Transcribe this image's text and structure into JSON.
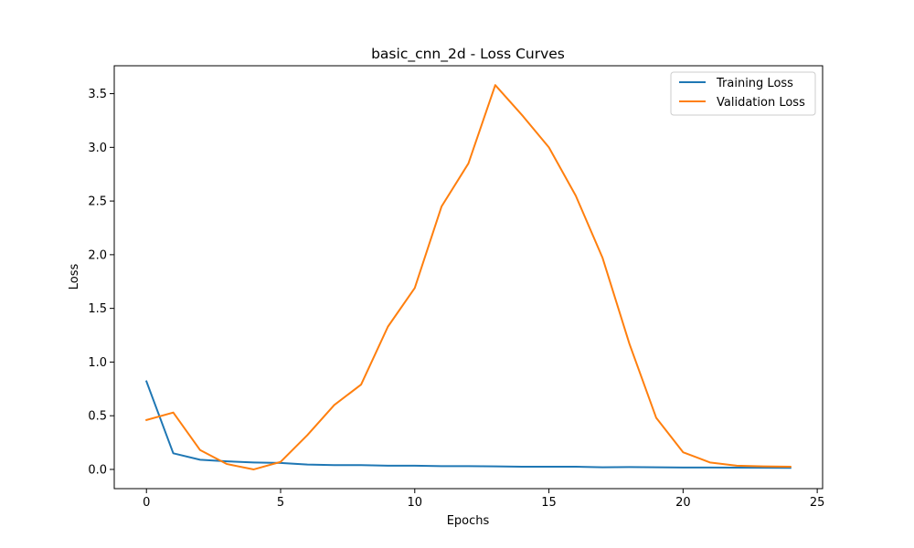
{
  "chart_data": {
    "type": "line",
    "title": "basic_cnn_2d - Loss Curves",
    "xlabel": "Epochs",
    "ylabel": "Loss",
    "x": [
      0,
      1,
      2,
      3,
      4,
      5,
      6,
      7,
      8,
      9,
      10,
      11,
      12,
      13,
      14,
      15,
      16,
      17,
      18,
      19,
      20,
      21,
      22,
      23,
      24
    ],
    "series": [
      {
        "name": "Training Loss",
        "color": "#1f77b4",
        "values": [
          0.82,
          0.15,
          0.09,
          0.075,
          0.065,
          0.06,
          0.045,
          0.04,
          0.04,
          0.035,
          0.035,
          0.03,
          0.03,
          0.028,
          0.025,
          0.025,
          0.025,
          0.02,
          0.022,
          0.02,
          0.018,
          0.018,
          0.017,
          0.016,
          0.015
        ]
      },
      {
        "name": "Validation Loss",
        "color": "#ff7f0e",
        "values": [
          0.46,
          0.53,
          0.18,
          0.05,
          0.0,
          0.07,
          0.32,
          0.6,
          0.79,
          1.33,
          1.69,
          2.45,
          2.85,
          3.58,
          3.3,
          3.0,
          2.55,
          1.97,
          1.17,
          0.48,
          0.16,
          0.065,
          0.035,
          0.028,
          0.025
        ]
      }
    ],
    "xlim": [
      -1.2,
      25.2
    ],
    "ylim": [
      -0.179,
      3.76
    ],
    "xticks": [
      0,
      5,
      10,
      15,
      20,
      25
    ],
    "yticks": [
      0.0,
      0.5,
      1.0,
      1.5,
      2.0,
      2.5,
      3.0,
      3.5
    ],
    "xtick_labels": [
      "0",
      "5",
      "10",
      "15",
      "20",
      "25"
    ],
    "ytick_labels": [
      "0.0",
      "0.5",
      "1.0",
      "1.5",
      "2.0",
      "2.5",
      "3.0",
      "3.5"
    ],
    "grid": false,
    "legend_position": "top-right"
  }
}
